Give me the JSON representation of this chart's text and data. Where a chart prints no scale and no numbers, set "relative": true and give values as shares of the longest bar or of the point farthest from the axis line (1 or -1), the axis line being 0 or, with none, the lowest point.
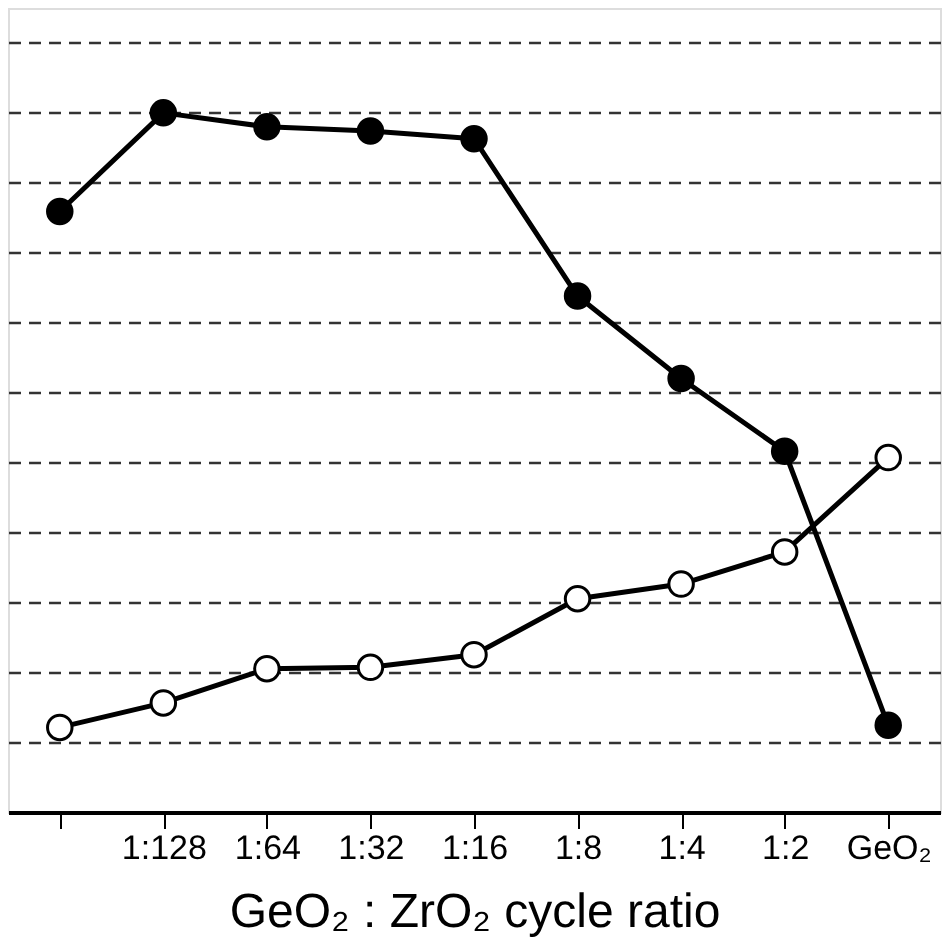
{
  "chart_data": {
    "type": "line",
    "relative": true,
    "xlabel": "GeO₂ : ZrO₂ cycle ratio",
    "categories": [
      null,
      "1:128",
      "1:64",
      "1:32",
      "1:16",
      "1:8",
      "1:4",
      "1:2",
      "GeO₂"
    ],
    "series": [
      {
        "color": "#000000",
        "values": [
          0.859,
          1.0,
          0.98,
          0.974,
          0.963,
          0.738,
          0.62,
          0.516,
          0.124
        ]
      },
      {
        "color": "#000000",
        "values": [
          0.121,
          0.156,
          0.205,
          0.207,
          0.225,
          0.305,
          0.326,
          0.372,
          0.507
        ]
      }
    ],
    "grid": "y",
    "marker": "circle",
    "line_style": "solid",
    "legend": false
  }
}
